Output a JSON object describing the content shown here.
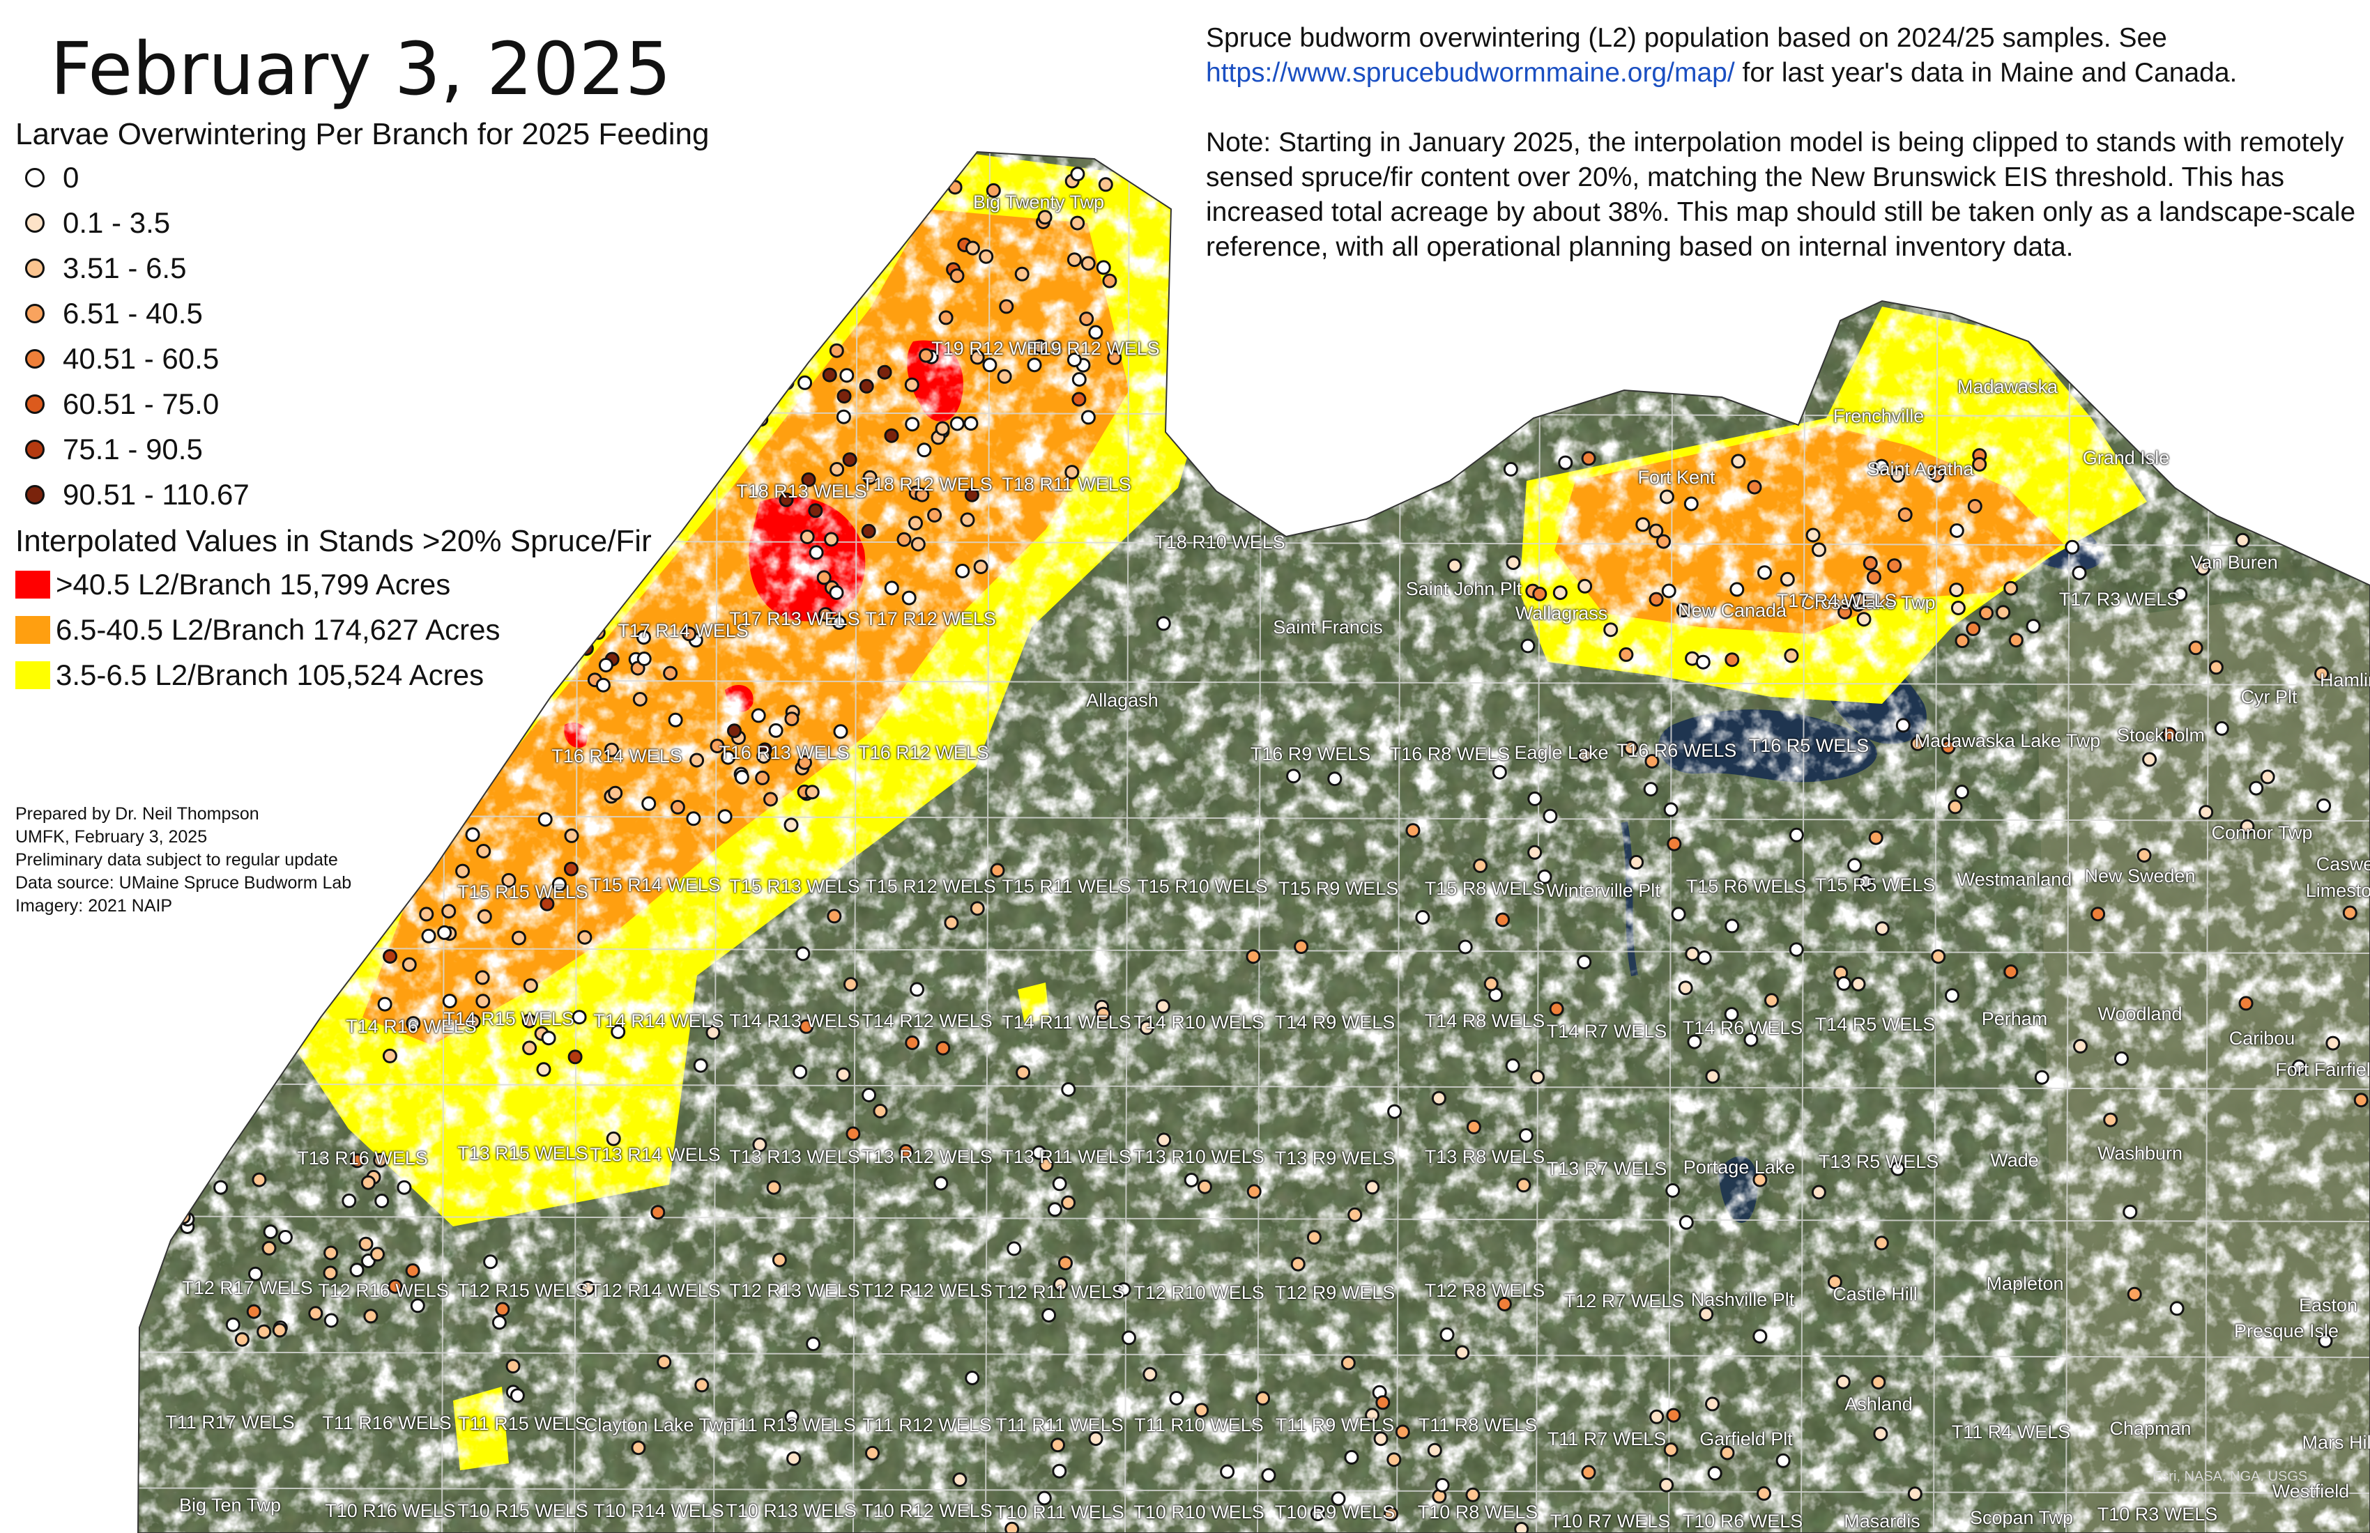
{
  "title": "February 3, 2025",
  "info": {
    "intro": "Spruce budworm overwintering (L2) population based on 2024/25 samples. See",
    "link": "https://www.sprucebudwormmaine.org/map/",
    "intro_end": "for last year's data in Maine and Canada.",
    "note": "Note: Starting in January 2025, the interpolation model is being clipped to stands with remotely sensed spruce/fir content over 20%, matching the New Brunswick EIS threshold. This has increased total acreage by about 38%. This map should still be taken only as a landscape-scale reference, with all operational planning based on internal inventory data."
  },
  "legend": {
    "points_title": "Larvae Overwintering Per Branch for 2025 Feeding",
    "points": [
      {
        "label": "0",
        "color": "#ffffff"
      },
      {
        "label": "0.1 - 3.5",
        "color": "#fde3c8"
      },
      {
        "label": "3.51 - 6.5",
        "color": "#fcc590"
      },
      {
        "label": "6.51 - 40.5",
        "color": "#f9a35e"
      },
      {
        "label": "40.51 - 60.5",
        "color": "#ef7f39"
      },
      {
        "label": "60.51 - 75.0",
        "color": "#dc5a1d"
      },
      {
        "label": "75.1 - 90.5",
        "color": "#b53a10"
      },
      {
        "label": "90.51 - 110.67",
        "color": "#7a230c"
      }
    ],
    "areas_title": "Interpolated Values in Stands >20% Spruce/Fir",
    "areas": [
      {
        "label": ">40.5 L2/Branch 15,799 Acres",
        "color": "#ff0000"
      },
      {
        "label": "6.5-40.5 L2/Branch 174,627 Acres",
        "color": "#ff9f10"
      },
      {
        "label": "3.5-6.5 L2/Branch 105,524 Acres",
        "color": "#ffff00"
      }
    ]
  },
  "credits": [
    "Prepared by Dr. Neil Thompson",
    "UMFK, February 3, 2025",
    "Preliminary data subject to regular update",
    "Data source: UMaine Spruce Budworm Lab",
    "Imagery: 2021 NAIP"
  ],
  "attribution": "Esri, NASA, NGA, USGS",
  "place_labels": [
    "Big Twenty Twp",
    "T19 R12 WELS",
    "T19 R12 WELS",
    "T18 R13 WELS",
    "T18 R12 WELS",
    "T18 R11 WELS",
    "T18 R10 WELS",
    "T17 R14 WELS",
    "T17 R13 WELS",
    "T17 R12 WELS",
    "Allagash",
    "Saint Francis",
    "Saint John Plt",
    "T16 R14 WELS",
    "T16 R13 WELS",
    "T16 R12 WELS",
    "T16 R9 WELS",
    "T16 R8 WELS",
    "Eagle Lake",
    "T16 R6 WELS",
    "T16 R5 WELS",
    "Wallagrass",
    "New Canada",
    "Cross Lake Twp",
    "Fort Kent",
    "Frenchville",
    "Madawaska",
    "Saint Agatha",
    "Grand Isle",
    "T17 R4 WELS",
    "T17 R3 WELS",
    "Van Buren",
    "Hamlin",
    "Cyr Plt",
    "Madawaska Lake Twp",
    "Stockholm",
    "Connor Twp",
    "Caswell",
    "Limestone",
    "T15 R15 WELS",
    "T15 R14 WELS",
    "T15 R13 WELS",
    "T15 R12 WELS",
    "T15 R11 WELS",
    "T15 R10 WELS",
    "T15 R9 WELS",
    "T15 R8 WELS",
    "Winterville Plt",
    "T15 R6 WELS",
    "T15 R5 WELS",
    "Westmanland",
    "New Sweden",
    "T14 R16 WELS",
    "T14 R15 WELS",
    "T14 R14 WELS",
    "T14 R13 WELS",
    "T14 R12 WELS",
    "T14 R11 WELS",
    "T14 R10 WELS",
    "T14 R9 WELS",
    "T14 R8 WELS",
    "T14 R7 WELS",
    "T14 R6 WELS",
    "T14 R5 WELS",
    "Perham",
    "Woodland",
    "Caribou",
    "Fort Fairfield",
    "T13 R16 WELS",
    "T13 R15 WELS",
    "T13 R14 WELS",
    "T13 R13 WELS",
    "T13 R12 WELS",
    "T13 R11 WELS",
    "T13 R10 WELS",
    "T13 R9 WELS",
    "T13 R8 WELS",
    "T13 R7 WELS",
    "Portage Lake",
    "T13 R5 WELS",
    "Wade",
    "Washburn",
    "T12 R17 WELS",
    "T12 R16 WELS",
    "T12 R15 WELS",
    "T12 R14 WELS",
    "T12 R13 WELS",
    "T12 R12 WELS",
    "T12 R11 WELS",
    "T12 R10 WELS",
    "T12 R9 WELS",
    "T12 R8 WELS",
    "T12 R7 WELS",
    "Nashville Plt",
    "Castle Hill",
    "Mapleton",
    "Easton",
    "Presque Isle",
    "T11 R17 WELS",
    "T11 R16 WELS",
    "T11 R15 WELS",
    "Clayton Lake Twp",
    "T11 R13 WELS",
    "T11 R12 WELS",
    "T11 R11 WELS",
    "T11 R10 WELS",
    "T11 R9 WELS",
    "T11 R8 WELS",
    "T11 R7 WELS",
    "Garfield Plt",
    "Ashland",
    "T11 R4 WELS",
    "Chapman",
    "Mars Hill",
    "Big Ten Twp",
    "T10 R16 WELS",
    "T10 R15 WELS",
    "T10 R14 WELS",
    "T10 R13 WELS",
    "T10 R12 WELS",
    "T10 R11 WELS",
    "T10 R10 WELS",
    "T10 R9 WELS",
    "T10 R8 WELS",
    "T10 R7 WELS",
    "T10 R6 WELS",
    "Masardis",
    "Scopan Twp",
    "T10 R3 WELS",
    "Westfield"
  ]
}
